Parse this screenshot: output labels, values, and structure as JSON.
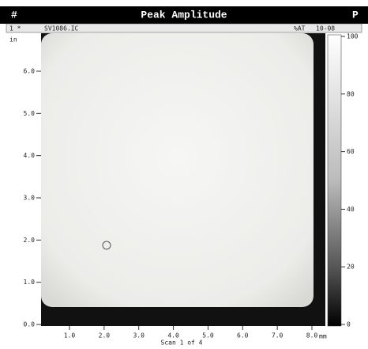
{
  "window": {
    "title": "Peak Amplitude",
    "left_icon": "#",
    "right_icon": "P"
  },
  "toolbar": {
    "left": "1 *",
    "file": "SV1086.IC",
    "mode": "%AT",
    "range": "10-08"
  },
  "y_axis": {
    "unit": "in",
    "labels": [
      "6.0",
      "5.0",
      "4.0",
      "3.0",
      "2.0",
      "1.0",
      "0.0"
    ]
  },
  "x_axis": {
    "labels": [
      "1.0",
      "2.0",
      "3.0",
      "4.0",
      "5.0",
      "6.0",
      "7.0",
      "8.0"
    ],
    "unit": "mm",
    "caption": "Scan 1 of 4"
  },
  "colorbar": {
    "labels": [
      "100",
      "80",
      "60",
      "40",
      "20",
      "0"
    ]
  }
}
